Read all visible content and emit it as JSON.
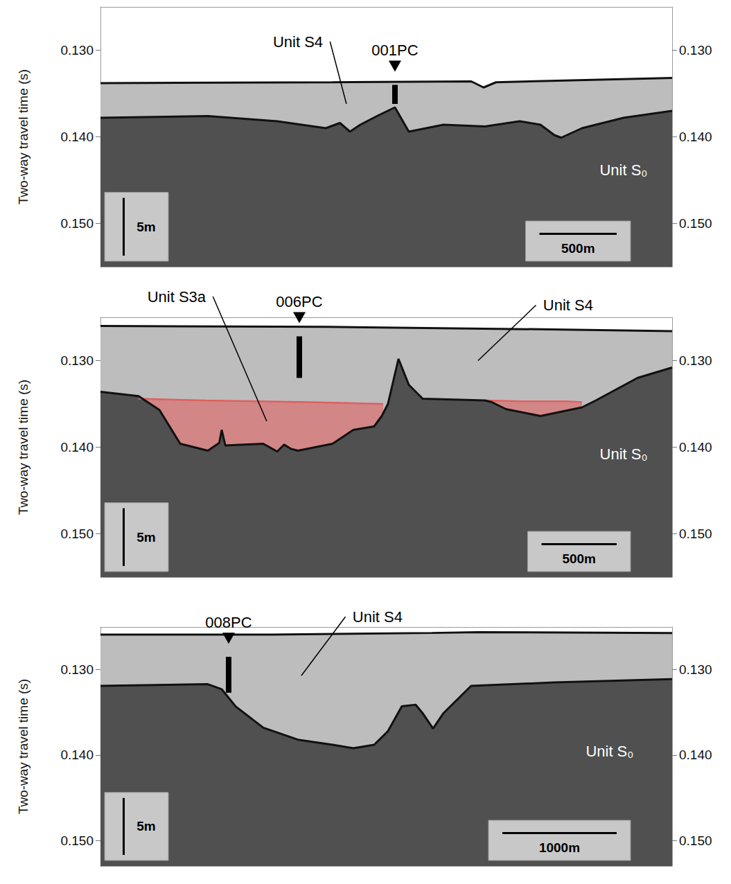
{
  "chart_data": [
    {
      "type": "line",
      "ylabel": "Two-way travel time (s)",
      "tick_labels": "y",
      "grid": false,
      "xlim": [
        0,
        3700
      ],
      "ylim": [
        0.125,
        0.155
      ],
      "yticks": [
        {
          "value": 0.13,
          "label": "0.130"
        },
        {
          "value": 0.14,
          "label": "0.140"
        },
        {
          "value": 0.15,
          "label": "0.150"
        }
      ],
      "y2lim": [
        0.125,
        0.155
      ],
      "y2ticks": [
        {
          "value": 0.13,
          "label": "0.130"
        },
        {
          "value": 0.14,
          "label": "0.140"
        },
        {
          "value": 0.15,
          "label": "0.150"
        }
      ],
      "series": [
        {
          "type": "area",
          "color": "#bdbdbd",
          "line_style": "black",
          "x": [
            0,
            1500,
            2400,
            2480,
            2560,
            3000,
            3700
          ],
          "values": [
            0.1338,
            0.1337,
            0.1336,
            0.1343,
            0.1337,
            0.1335,
            0.1332
          ]
        },
        {
          "type": "area",
          "color": "#505050",
          "line_style": "black",
          "x": [
            0,
            695,
            1144,
            1458,
            1550,
            1615,
            1682,
            1790,
            1906,
            1996,
            2220,
            2489,
            2713,
            2848,
            2938,
            2982,
            3117,
            3386,
            3700
          ],
          "values": [
            0.1378,
            0.1376,
            0.1382,
            0.139,
            0.1384,
            0.1394,
            0.1386,
            0.1376,
            0.1366,
            0.1394,
            0.1386,
            0.1388,
            0.1382,
            0.1386,
            0.1398,
            0.1401,
            0.139,
            0.1378,
            0.137
          ]
        }
      ],
      "cores": [
        {
          "label": "001PC",
          "x": 1906,
          "top": 0.134,
          "bottom": 0.1362
        }
      ],
      "annotations": [
        {
          "text": "Unit S4",
          "x": 1592,
          "y": 0.1362,
          "color": "#000000"
        },
        {
          "text": "Unit S₀",
          "x": 3386,
          "y": 0.1438,
          "color": "#ffffff"
        }
      ],
      "scale_bars": [
        {
          "label": "5m",
          "span": 0.00667,
          "axis": "y"
        },
        {
          "label": "500m",
          "span": 500,
          "axis": "x"
        }
      ]
    },
    {
      "type": "line",
      "ylabel": "Two-way travel time (s)",
      "tick_labels": "y",
      "grid": false,
      "xlim": [
        0,
        3800
      ],
      "ylim": [
        0.125,
        0.155
      ],
      "yticks": [
        {
          "value": 0.13,
          "label": "0.130"
        },
        {
          "value": 0.14,
          "label": "0.140"
        },
        {
          "value": 0.15,
          "label": "0.150"
        }
      ],
      "y2lim": [
        0.125,
        0.155
      ],
      "y2ticks": [
        {
          "value": 0.13,
          "label": "0.130"
        },
        {
          "value": 0.14,
          "label": "0.140"
        },
        {
          "value": 0.15,
          "label": "0.150"
        }
      ],
      "series": [
        {
          "type": "area",
          "color": "#bdbdbd",
          "line_style": "black",
          "x": [
            0,
            1500,
            3000,
            3800
          ],
          "values": [
            0.126,
            0.1261,
            0.1264,
            0.1266
          ]
        },
        {
          "type": "area",
          "color": "#e06060",
          "line_style": "solid",
          "x": [
            253,
            700,
            1400,
            1880
          ],
          "values": [
            0.1344,
            0.1346,
            0.1348,
            0.135
          ]
        },
        {
          "type": "area",
          "color": "#e06060",
          "line_style": "solid",
          "x": [
            2556,
            2800,
            3100,
            3201
          ],
          "values": [
            0.1346,
            0.1347,
            0.1347,
            0.1348
          ]
        },
        {
          "type": "area",
          "color": "#505050",
          "line_style": "black",
          "x": [
            0,
            253,
            392,
            530,
            714,
            790,
            806,
            830,
            1082,
            1175,
            1221,
            1267,
            1313,
            1543,
            1681,
            1819,
            1870,
            1911,
            1981,
            2050,
            2142,
            2556,
            2602,
            2695,
            2925,
            3201,
            3293,
            3570,
            3800
          ],
          "values": [
            0.1336,
            0.1341,
            0.1357,
            0.1396,
            0.1404,
            0.1395,
            0.138,
            0.1398,
            0.1396,
            0.1405,
            0.1397,
            0.1402,
            0.1404,
            0.1396,
            0.138,
            0.1376,
            0.1364,
            0.135,
            0.1298,
            0.1328,
            0.1344,
            0.1346,
            0.1348,
            0.1356,
            0.1364,
            0.1354,
            0.1346,
            0.132,
            0.1308
          ]
        }
      ],
      "cores": [
        {
          "label": "006PC",
          "x": 1322,
          "top": 0.1272,
          "bottom": 0.132
        }
      ],
      "annotations": [
        {
          "text": "Unit S3a",
          "x": 1105,
          "y": 0.137,
          "color": "#000000"
        },
        {
          "text": "Unit S4",
          "x": 2510,
          "y": 0.13,
          "color": "#000000"
        },
        {
          "text": "Unit S₀",
          "x": 3478,
          "y": 0.1408,
          "color": "#ffffff"
        }
      ],
      "scale_bars": [
        {
          "label": "5m",
          "span": 0.00667,
          "axis": "y"
        },
        {
          "label": "500m",
          "span": 500,
          "axis": "x"
        }
      ]
    },
    {
      "type": "line",
      "ylabel": "Two-way travel time (s)",
      "tick_labels": "y",
      "grid": false,
      "xlim": [
        0,
        5000
      ],
      "ylim": [
        0.125,
        0.153
      ],
      "yticks": [
        {
          "value": 0.13,
          "label": "0.130"
        },
        {
          "value": 0.14,
          "label": "0.140"
        },
        {
          "value": 0.15,
          "label": "0.150"
        }
      ],
      "y2lim": [
        0.125,
        0.153
      ],
      "y2ticks": [
        {
          "value": 0.13,
          "label": "0.130"
        },
        {
          "value": 0.14,
          "label": "0.140"
        },
        {
          "value": 0.15,
          "label": "0.150"
        }
      ],
      "series": [
        {
          "type": "area",
          "color": "#bdbdbd",
          "line_style": "black",
          "x": [
            0,
            1500,
            2900,
            3300,
            5000
          ],
          "values": [
            0.1259,
            0.1259,
            0.1257,
            0.1256,
            0.1257
          ]
        },
        {
          "type": "area",
          "color": "#505050",
          "line_style": "black",
          "x": [
            0,
            939,
            1061,
            1182,
            1424,
            1727,
            2030,
            2212,
            2394,
            2515,
            2636,
            2757,
            2818,
            2909,
            3000,
            3242,
            3969,
            5000
          ],
          "values": [
            0.1319,
            0.1317,
            0.1323,
            0.1343,
            0.1368,
            0.1382,
            0.1388,
            0.1392,
            0.1388,
            0.1372,
            0.1343,
            0.1341,
            0.1351,
            0.1369,
            0.1351,
            0.1319,
            0.1315,
            0.1311
          ]
        }
      ],
      "cores": [
        {
          "label": "008PC",
          "x": 1121,
          "top": 0.1285,
          "bottom": 0.1327
        }
      ],
      "annotations": [
        {
          "text": "Unit S4",
          "x": 1757,
          "y": 0.1307,
          "color": "#000000"
        },
        {
          "text": "Unit S₀",
          "x": 4454,
          "y": 0.1396,
          "color": "#ffffff"
        }
      ],
      "scale_bars": [
        {
          "label": "5m",
          "span": 0.00667,
          "axis": "y"
        },
        {
          "label": "1000m",
          "span": 1000,
          "axis": "x"
        }
      ]
    }
  ]
}
